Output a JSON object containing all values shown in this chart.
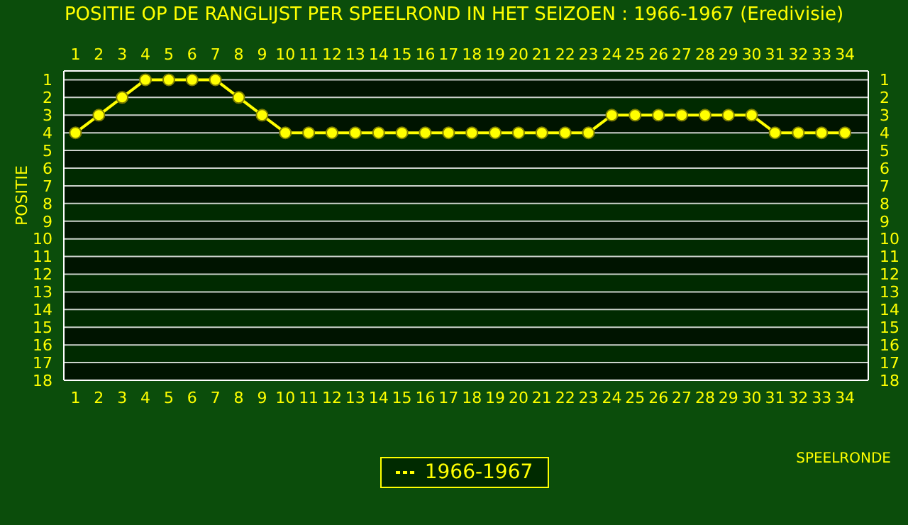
{
  "chart_data": {
    "type": "line",
    "title": "POSITIE OP DE RANGLIJST PER  SPEELROND IN HET SEIZOEN : 1966-1967 (Eredivisie)",
    "xlabel": "SPEELRONDE",
    "ylabel": "POSITIE",
    "x": [
      1,
      2,
      3,
      4,
      5,
      6,
      7,
      8,
      9,
      10,
      11,
      12,
      13,
      14,
      15,
      16,
      17,
      18,
      19,
      20,
      21,
      22,
      23,
      24,
      25,
      26,
      27,
      28,
      29,
      30,
      31,
      32,
      33,
      34
    ],
    "series": [
      {
        "name": "1966-1967",
        "color": "#ffff00",
        "values": [
          4,
          3,
          2,
          1,
          1,
          1,
          1,
          2,
          3,
          4,
          4,
          4,
          4,
          4,
          4,
          4,
          4,
          4,
          4,
          4,
          4,
          4,
          4,
          3,
          3,
          3,
          3,
          3,
          3,
          3,
          4,
          4,
          4,
          4
        ]
      }
    ],
    "xlim": [
      0.5,
      35
    ],
    "xticks": [
      1,
      2,
      3,
      4,
      5,
      6,
      7,
      8,
      9,
      10,
      11,
      12,
      13,
      14,
      15,
      16,
      17,
      18,
      19,
      20,
      21,
      22,
      23,
      24,
      25,
      26,
      27,
      28,
      29,
      30,
      31,
      32,
      33,
      34
    ],
    "x2lim": [
      0.5,
      35
    ],
    "x2ticks": [
      1,
      2,
      3,
      4,
      5,
      6,
      7,
      8,
      9,
      10,
      11,
      12,
      13,
      14,
      15,
      16,
      17,
      18,
      19,
      20,
      21,
      22,
      23,
      24,
      25,
      26,
      27,
      28,
      29,
      30,
      31,
      32,
      33,
      34
    ],
    "ylim": [
      18,
      0.5
    ],
    "yticks": [
      1,
      2,
      3,
      4,
      5,
      6,
      7,
      8,
      9,
      10,
      11,
      12,
      13,
      14,
      15,
      16,
      17,
      18
    ],
    "y2lim": [
      18,
      0.5
    ],
    "y2ticks": [
      1,
      2,
      3,
      4,
      5,
      6,
      7,
      8,
      9,
      10,
      11,
      12,
      13,
      14,
      15,
      16,
      17,
      18
    ],
    "grid": "y",
    "legend": "bottom",
    "marker": "circle",
    "line_style": "solid"
  }
}
